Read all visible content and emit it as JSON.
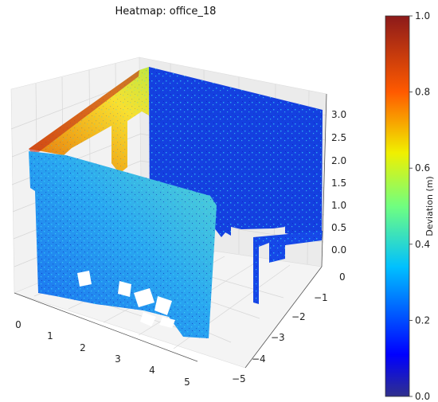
{
  "chart_data": {
    "type": "heatmap",
    "subtype": "3d-point-cloud-scatter",
    "title": "Heatmap: office_18",
    "colormap": "jet",
    "axes": {
      "x": {
        "ticks": [
          "0",
          "1",
          "2",
          "3",
          "4",
          "5"
        ],
        "range": [
          0,
          5.5
        ]
      },
      "y": {
        "ticks": [
          "0",
          "−1",
          "−2",
          "−3",
          "−4",
          "−5"
        ],
        "range": [
          0,
          -5.3
        ]
      },
      "z": {
        "ticks": [
          "0.0",
          "0.5",
          "1.0",
          "1.5",
          "2.0",
          "2.5",
          "3.0"
        ],
        "range": [
          0,
          3.2
        ]
      }
    },
    "colorbar": {
      "label": "Deviation (m)",
      "range": [
        0.0,
        1.0
      ],
      "ticks": [
        "0.0",
        "0.2",
        "0.4",
        "0.6",
        "0.8",
        "1.0"
      ]
    },
    "grid": true
  }
}
